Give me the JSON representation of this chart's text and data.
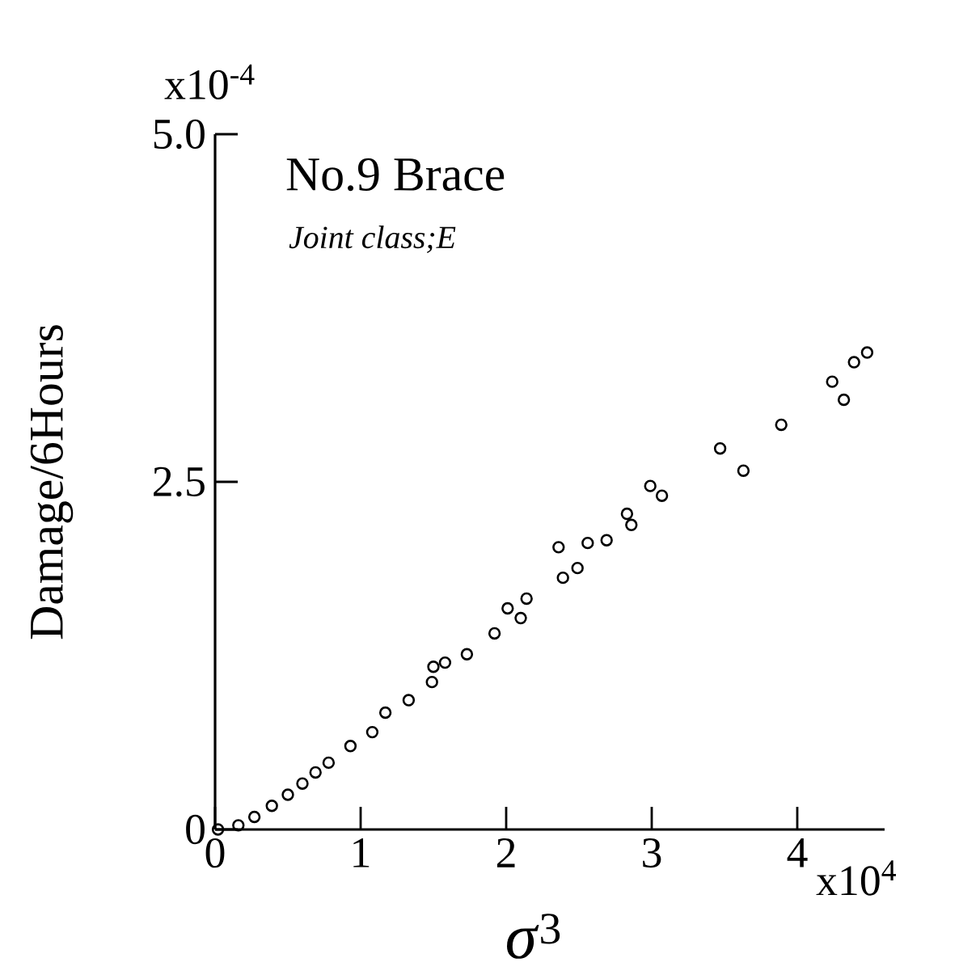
{
  "chart_data": {
    "type": "scatter",
    "title": "No.9  Brace",
    "subtitle": "*Joint class;E*",
    "xlabel": "*σ*$^{3}$",
    "ylabel": "Damage/6Hours",
    "annotations": [
      "x10$^{-4}$",
      "x10$^{4}$"
    ],
    "xlim": [
      0,
      4.6
    ],
    "ylim": [
      0,
      5.0
    ],
    "xticks": [
      0,
      1,
      2,
      3,
      4
    ],
    "yticks": [
      0,
      {
        "value": 2.5,
        "label": "2.5"
      },
      {
        "value": 5.0,
        "label": "5.0"
      }
    ],
    "marker": "circle",
    "grid": false,
    "series": [
      {
        "color": "#000000",
        "x": [
          0.02,
          0.16,
          0.27,
          0.39,
          0.5,
          0.6,
          0.69,
          0.78,
          0.93,
          1.08,
          1.17,
          1.33,
          1.49,
          1.5,
          1.58,
          1.73,
          1.92,
          2.01,
          2.1,
          2.14,
          2.36,
          2.39,
          2.49,
          2.56,
          2.69,
          2.83,
          2.86,
          2.99,
          3.07,
          3.47,
          3.63,
          3.89,
          4.24,
          4.32,
          4.39,
          4.48
        ],
        "values": [
          0,
          0.03,
          0.09,
          0.17,
          0.25,
          0.33,
          0.41,
          0.48,
          0.6,
          0.7,
          0.84,
          0.93,
          1.06,
          1.17,
          1.2,
          1.26,
          1.41,
          1.59,
          1.52,
          1.66,
          2.03,
          1.81,
          1.88,
          2.06,
          2.08,
          2.27,
          2.19,
          2.47,
          2.4,
          2.74,
          2.58,
          2.91,
          3.22,
          3.09,
          3.36,
          3.43
        ]
      }
    ]
  }
}
